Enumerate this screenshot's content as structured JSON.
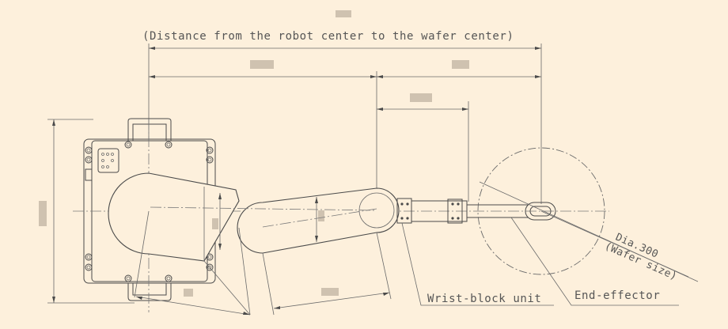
{
  "labels": {
    "distance_note": "(Distance from the robot center to the wafer center)",
    "wrist_block": "Wrist-block unit",
    "end_effector": "End-effector",
    "wafer_dia": "Dia.300",
    "wafer_size": "(Wafer size)"
  }
}
